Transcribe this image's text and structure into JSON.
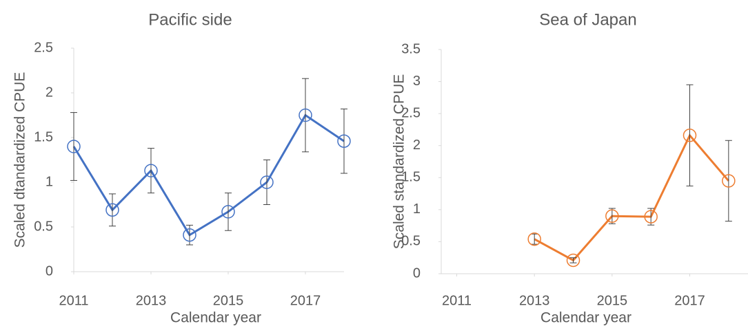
{
  "chart_data": [
    {
      "type": "line",
      "title": "Pacific side",
      "x_label": "Calendar year",
      "y_label": "Scaled dtandardized CPUE",
      "x": [
        2011,
        2012,
        2013,
        2014,
        2015,
        2016,
        2017,
        2018
      ],
      "values": [
        1.4,
        0.69,
        1.13,
        0.41,
        0.67,
        1.0,
        1.75,
        1.46
      ],
      "errors": [
        0.38,
        0.18,
        0.25,
        0.11,
        0.21,
        0.25,
        0.41,
        0.36
      ],
      "color": "#4472c4",
      "xlim": [
        2011,
        2018
      ],
      "xticks": [
        2011,
        2013,
        2015,
        2017
      ],
      "ylim": [
        0,
        2.5
      ],
      "yticks": [
        0,
        0.5,
        1,
        1.5,
        2,
        2.5
      ]
    },
    {
      "type": "line",
      "title": "Sea of Japan",
      "x_label": "Calendar year",
      "y_label": "Scaled standardized CPUE",
      "x": [
        2011,
        2012,
        2013,
        2014,
        2015,
        2016,
        2017,
        2018
      ],
      "values": [
        null,
        null,
        0.54,
        0.21,
        0.9,
        0.89,
        2.16,
        1.45
      ],
      "errors": [
        null,
        null,
        0.08,
        0.04,
        0.12,
        0.13,
        0.79,
        0.63
      ],
      "color": "#ed7d31",
      "xlim": [
        2010.6,
        2018.5
      ],
      "xticks": [
        2011,
        2013,
        2015,
        2017
      ],
      "ylim": [
        0,
        3.5
      ],
      "yticks": [
        0,
        0.5,
        1,
        1.5,
        2,
        2.5,
        3,
        3.5
      ]
    }
  ]
}
